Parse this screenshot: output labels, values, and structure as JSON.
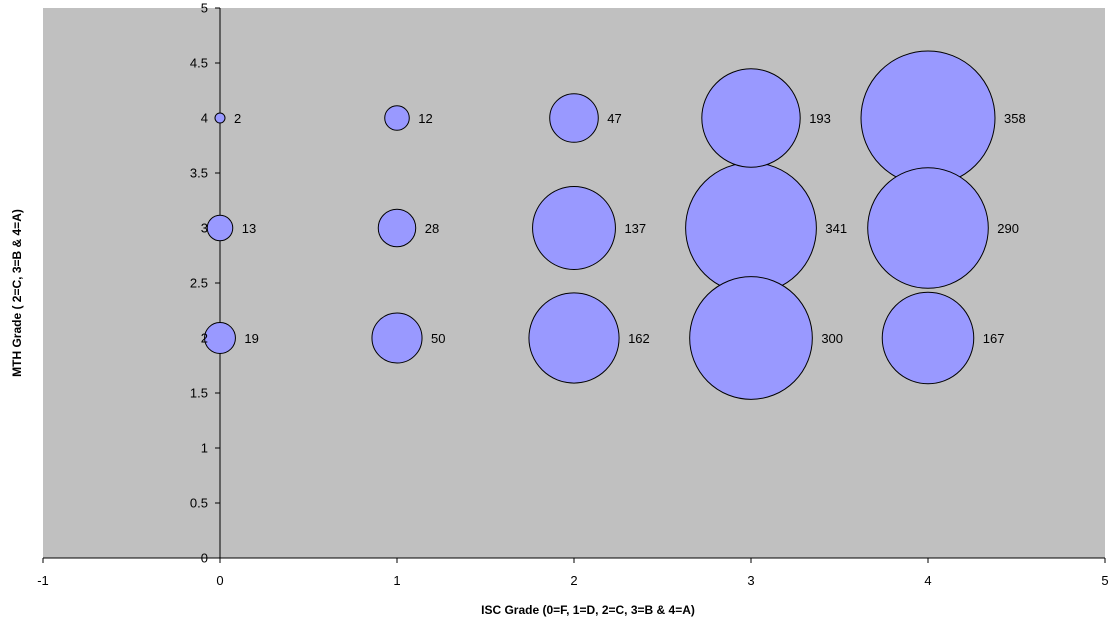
{
  "chart_data": {
    "type": "bubble",
    "title": "",
    "xlabel": "ISC Grade  (0=F, 1=D, 2=C, 3=B & 4=A)",
    "ylabel": "MTH Grade ( 2=C, 3=B & 4=A)",
    "xlim": [
      -1,
      5
    ],
    "ylim": [
      0,
      5
    ],
    "xticks": [
      -1,
      0,
      1,
      2,
      3,
      4,
      5
    ],
    "yticks": [
      0,
      0.5,
      1,
      1.5,
      2,
      2.5,
      3,
      3.5,
      4,
      4.5,
      5
    ],
    "grid": false,
    "legend": "none",
    "points": [
      {
        "x": 0,
        "y": 4,
        "size": 2
      },
      {
        "x": 1,
        "y": 4,
        "size": 12
      },
      {
        "x": 2,
        "y": 4,
        "size": 47
      },
      {
        "x": 3,
        "y": 4,
        "size": 193
      },
      {
        "x": 4,
        "y": 4,
        "size": 358
      },
      {
        "x": 0,
        "y": 3,
        "size": 13
      },
      {
        "x": 1,
        "y": 3,
        "size": 28
      },
      {
        "x": 2,
        "y": 3,
        "size": 137
      },
      {
        "x": 3,
        "y": 3,
        "size": 341
      },
      {
        "x": 4,
        "y": 3,
        "size": 290
      },
      {
        "x": 0,
        "y": 2,
        "size": 19
      },
      {
        "x": 1,
        "y": 2,
        "size": 50
      },
      {
        "x": 2,
        "y": 2,
        "size": 162
      },
      {
        "x": 3,
        "y": 2,
        "size": 300
      },
      {
        "x": 4,
        "y": 2,
        "size": 167
      }
    ],
    "colors": {
      "plot_background": "#c0c0c0",
      "bubble_fill": "#9999ff",
      "bubble_stroke": "#000000"
    }
  }
}
